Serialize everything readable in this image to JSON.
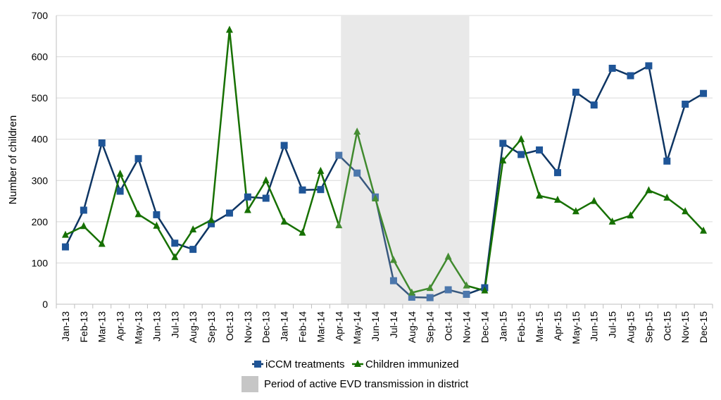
{
  "chart_data": {
    "type": "line",
    "title": "",
    "xlabel": "",
    "ylabel": "Number of children",
    "ylim": [
      0,
      700
    ],
    "yticks": [
      0,
      100,
      200,
      300,
      400,
      500,
      600,
      700
    ],
    "grid": true,
    "categories": [
      "Jan-13",
      "Feb-13",
      "Mar-13",
      "Apr-13",
      "May-13",
      "Jun-13",
      "Jul-13",
      "Aug-13",
      "Sep-13",
      "Oct-13",
      "Nov-13",
      "Dec-13",
      "Jan-14",
      "Feb-14",
      "Mar-14",
      "Apr-14",
      "May-14",
      "Jun-14",
      "Jul-14",
      "Aug-14",
      "Sep-14",
      "Oct-14",
      "Nov-14",
      "Dec-14",
      "Jan-15",
      "Feb-15",
      "Mar-15",
      "Apr-15",
      "May-15",
      "Jun-15",
      "Jul-15",
      "Aug-15",
      "Sep-15",
      "Oct-15",
      "Nov-15",
      "Dec-15"
    ],
    "series": [
      {
        "name": "iCCM treatments",
        "marker": "square",
        "color": "#0e3563",
        "marker_color": "#1f5597",
        "values": [
          139,
          228,
          391,
          274,
          353,
          217,
          148,
          133,
          195,
          221,
          260,
          257,
          385,
          277,
          278,
          361,
          318,
          260,
          57,
          17,
          16,
          35,
          24,
          40,
          390,
          363,
          374,
          319,
          514,
          483,
          572,
          554,
          578,
          347,
          485,
          511
        ]
      },
      {
        "name": "Children immunized",
        "marker": "triangle",
        "color": "#167000",
        "marker_color": "#167000",
        "values": [
          168,
          189,
          146,
          316,
          218,
          190,
          114,
          181,
          204,
          665,
          228,
          300,
          200,
          173,
          323,
          191,
          418,
          256,
          107,
          28,
          39,
          115,
          45,
          33,
          348,
          400,
          263,
          253,
          225,
          250,
          200,
          215,
          276,
          258,
          225,
          178
        ]
      }
    ],
    "shaded_period": {
      "label": "Period of active EVD transmission in district",
      "from": "Apr-14",
      "to": "Nov-14",
      "color": "#d9d9d9"
    },
    "legend_position": "bottom-center"
  }
}
